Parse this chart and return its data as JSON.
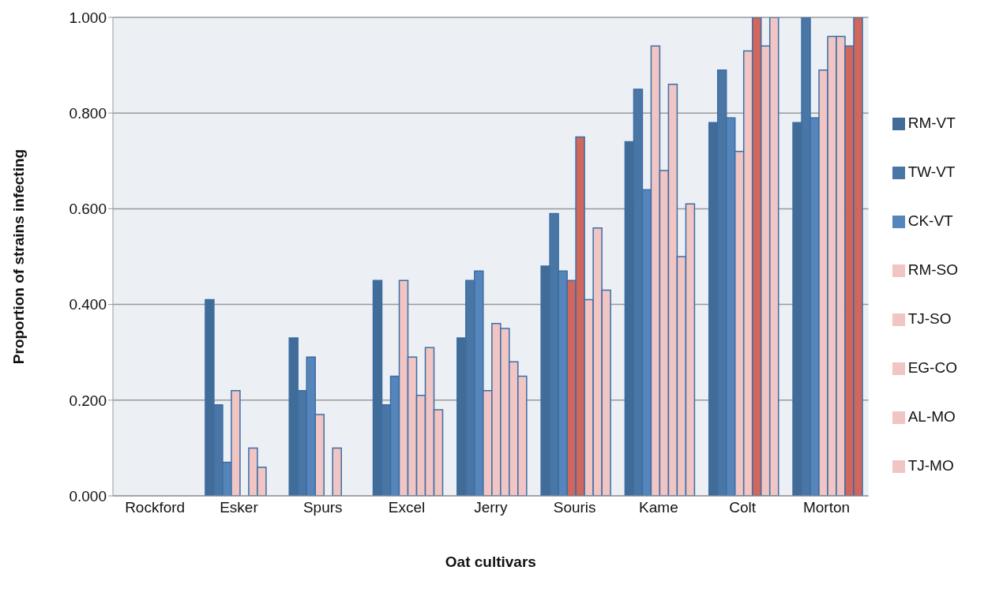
{
  "chart_data": {
    "type": "bar",
    "xlabel": "Oat cultivars",
    "ylabel": "Proportion of strains infecting",
    "categories": [
      "Rockford",
      "Esker",
      "Spurs",
      "Excel",
      "Jerry",
      "Souris",
      "Kame",
      "Colt",
      "Morton"
    ],
    "series": [
      {
        "name": "RM-VT",
        "color": "#416c97",
        "values": [
          0,
          0.41,
          0.33,
          0.45,
          0.33,
          0.48,
          0.74,
          0.78,
          0.78
        ]
      },
      {
        "name": "TW-VT",
        "color": "#4a76a6",
        "values": [
          0,
          0.19,
          0.22,
          0.19,
          0.45,
          0.59,
          0.85,
          0.89,
          1.0
        ]
      },
      {
        "name": "CK-VT",
        "color": "#5585bb",
        "values": [
          0,
          0.07,
          0.29,
          0.25,
          0.47,
          0.47,
          0.64,
          0.79,
          0.79
        ]
      },
      {
        "name": "RM-SO",
        "color": "#f0c5c3",
        "colors": [
          "#f0c5c3",
          "#f0c5c3",
          "#f0c5c3",
          "#f0c5c3",
          "#f0c5c3",
          "#d0665c",
          "#f0c5c3",
          "#f0c5c3",
          "#f0c5c3"
        ],
        "values": [
          0,
          0.22,
          0.17,
          0.45,
          0.22,
          0.45,
          0.94,
          0.72,
          0.89
        ]
      },
      {
        "name": "TJ-SO",
        "color": "#f0c5c3",
        "colors": [
          "#f0c5c3",
          "#f0c5c3",
          "#f0c5c3",
          "#f0c5c3",
          "#f0c5c3",
          "#d0665c",
          "#f0c5c3",
          "#f0c5c3",
          "#f0c5c3"
        ],
        "values": [
          0,
          0,
          0,
          0.29,
          0.36,
          0.75,
          0.68,
          0.93,
          0.96
        ]
      },
      {
        "name": "EG-CO",
        "color": "#f0c5c3",
        "colors": [
          "#f0c5c3",
          "#f0c5c3",
          "#f0c5c3",
          "#f0c5c3",
          "#f0c5c3",
          "#f0c5c3",
          "#f0c5c3",
          "#d0665c",
          "#f0c5c3"
        ],
        "values": [
          0,
          0.1,
          0.1,
          0.21,
          0.35,
          0.41,
          0.86,
          1.0,
          0.96
        ]
      },
      {
        "name": "AL-MO",
        "color": "#f0c5c3",
        "colors": [
          "#f0c5c3",
          "#f0c5c3",
          "#f0c5c3",
          "#f0c5c3",
          "#f0c5c3",
          "#f0c5c3",
          "#f0c5c3",
          "#f0c5c3",
          "#d0665c"
        ],
        "values": [
          0,
          0.06,
          0,
          0.31,
          0.28,
          0.56,
          0.5,
          0.94,
          0.94
        ]
      },
      {
        "name": "TJ-MO",
        "color": "#f0c5c3",
        "colors": [
          "#f0c5c3",
          "#f0c5c3",
          "#f0c5c3",
          "#f0c5c3",
          "#f0c5c3",
          "#f0c5c3",
          "#f0c5c3",
          "#f0c5c3",
          "#d0665c"
        ],
        "values": [
          0,
          0,
          0,
          0.18,
          0.25,
          0.43,
          0.61,
          1.0,
          1.0
        ]
      }
    ],
    "ylim": [
      0,
      1
    ],
    "yticks": [
      {
        "value": 0,
        "label": "0.000"
      },
      {
        "value": 0.2,
        "label": "0.200"
      },
      {
        "value": 0.4,
        "label": "0.400"
      },
      {
        "value": 0.6,
        "label": "0.600"
      },
      {
        "value": 0.8,
        "label": "0.800"
      },
      {
        "value": 1,
        "label": "1.000"
      }
    ],
    "grid": "y",
    "legend": "right"
  }
}
